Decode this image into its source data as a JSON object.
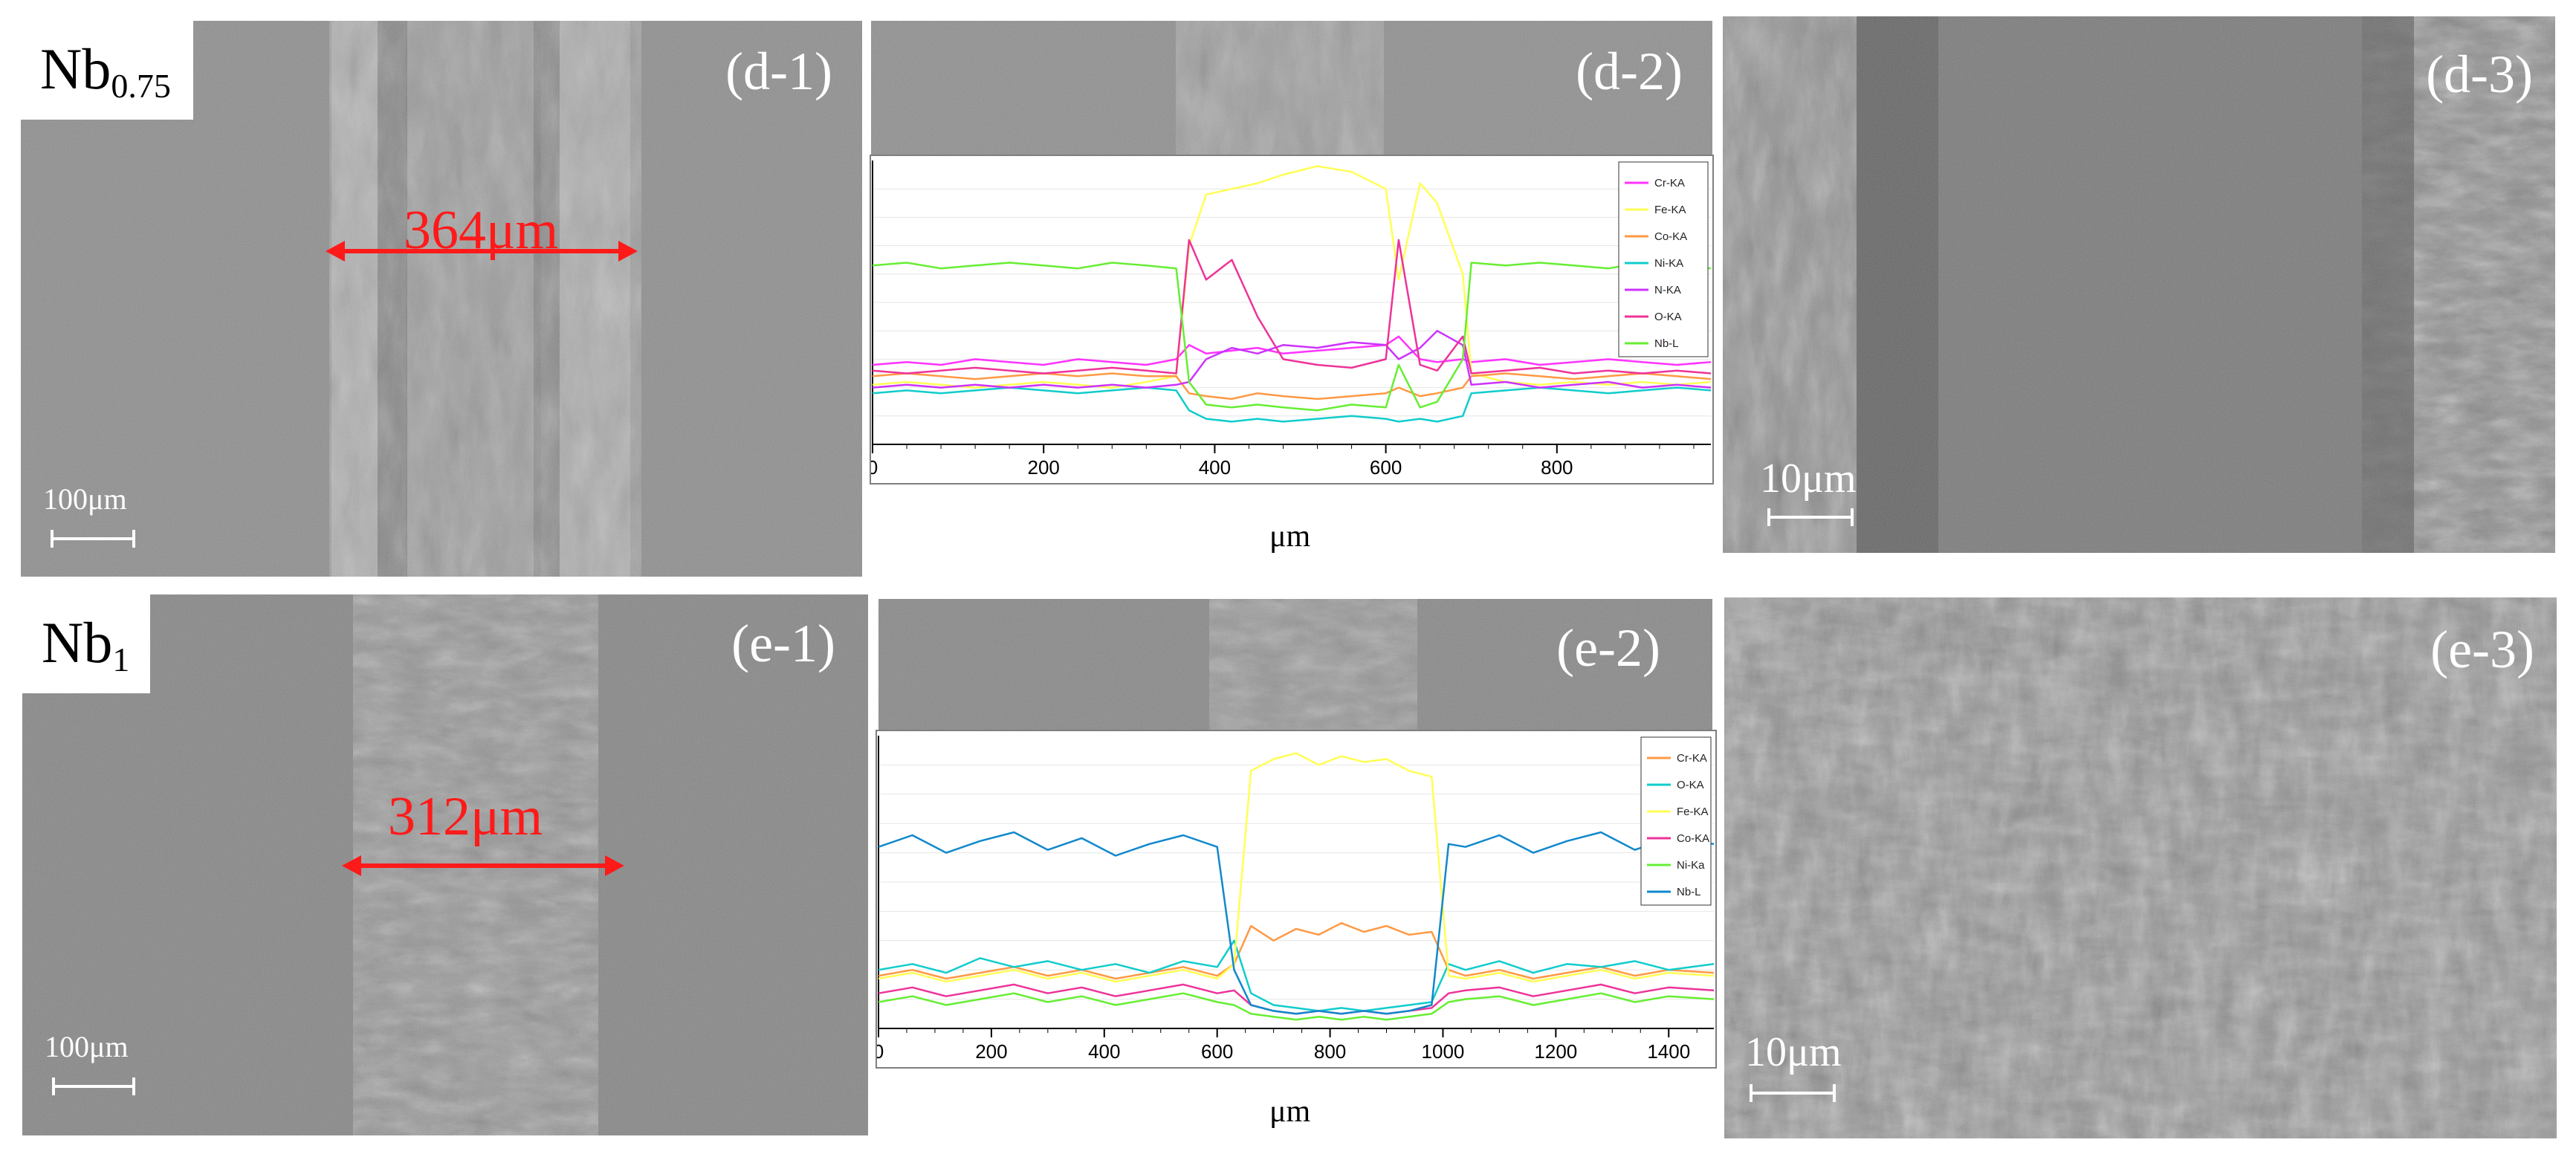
{
  "panels": {
    "d1": {
      "label": "(d-1)",
      "sample_main": "Nb",
      "sample_sub": "0.75",
      "measurement": "364μm",
      "scale": "100μm"
    },
    "d2": {
      "label": "(d-2)"
    },
    "d3": {
      "label": "(d-3)",
      "scale": "10μm"
    },
    "e1": {
      "label": "(e-1)",
      "sample_main": "Nb",
      "sample_sub": "1",
      "measurement": "312μm",
      "scale": "100μm"
    },
    "e2": {
      "label": "(e-2)"
    },
    "e3": {
      "label": "(e-3)",
      "scale": "10μm"
    }
  },
  "colors": {
    "measure": "#ff1a1a"
  },
  "chart_data": [
    {
      "type": "line",
      "id": "d2",
      "xlabel": "μm",
      "ylabel": "",
      "xlim": [
        0,
        980
      ],
      "ylim": [
        0,
        100
      ],
      "xticks": [
        "0",
        "200",
        "400",
        "600",
        "800"
      ],
      "x": [
        0,
        40,
        80,
        120,
        160,
        200,
        240,
        280,
        320,
        355,
        370,
        390,
        420,
        450,
        480,
        520,
        560,
        600,
        615,
        640,
        660,
        690,
        700,
        740,
        780,
        820,
        860,
        900,
        940,
        980
      ],
      "series": [
        {
          "name": "Cr-KA",
          "color": "#ff33ff",
          "values": [
            28,
            29,
            28,
            30,
            29,
            28,
            30,
            29,
            28,
            30,
            35,
            32,
            33,
            34,
            32,
            33,
            34,
            35,
            38,
            30,
            29,
            30,
            29,
            30,
            28,
            29,
            30,
            29,
            28,
            29
          ]
        },
        {
          "name": "Fe-KA",
          "color": "#ffff55",
          "values": [
            21,
            22,
            21,
            20,
            21,
            22,
            21,
            20,
            22,
            24,
            70,
            88,
            90,
            92,
            95,
            98,
            96,
            90,
            58,
            92,
            85,
            60,
            25,
            22,
            21,
            22,
            21,
            22,
            21,
            22
          ]
        },
        {
          "name": "Co-KA",
          "color": "#ff9944",
          "values": [
            24,
            25,
            24,
            23,
            24,
            25,
            24,
            25,
            24,
            24,
            18,
            17,
            16,
            18,
            17,
            16,
            17,
            18,
            20,
            17,
            18,
            20,
            24,
            25,
            24,
            23,
            24,
            25,
            24,
            23
          ]
        },
        {
          "name": "Ni-KA",
          "color": "#11cccc",
          "values": [
            18,
            19,
            18,
            19,
            20,
            19,
            18,
            19,
            20,
            19,
            12,
            9,
            8,
            9,
            8,
            9,
            10,
            9,
            8,
            9,
            8,
            10,
            18,
            19,
            20,
            19,
            18,
            19,
            20,
            19
          ]
        },
        {
          "name": "N-KA",
          "color": "#cc33ff",
          "values": [
            20,
            21,
            20,
            21,
            20,
            21,
            20,
            21,
            20,
            21,
            22,
            30,
            34,
            32,
            35,
            34,
            36,
            35,
            30,
            34,
            40,
            35,
            21,
            22,
            20,
            21,
            22,
            20,
            21,
            20
          ]
        },
        {
          "name": "O-KA",
          "color": "#ee3399",
          "values": [
            26,
            25,
            26,
            27,
            26,
            25,
            26,
            27,
            26,
            25,
            72,
            58,
            65,
            45,
            30,
            28,
            27,
            30,
            72,
            28,
            26,
            38,
            25,
            26,
            27,
            25,
            26,
            25,
            26,
            25
          ]
        },
        {
          "name": "Nb-L",
          "color": "#66ee33",
          "values": [
            63,
            64,
            62,
            63,
            64,
            63,
            62,
            64,
            63,
            62,
            22,
            14,
            13,
            14,
            13,
            12,
            14,
            13,
            28,
            13,
            15,
            30,
            64,
            63,
            64,
            63,
            62,
            64,
            63,
            62
          ]
        }
      ]
    },
    {
      "type": "line",
      "id": "e2",
      "xlabel": "μm",
      "ylabel": "",
      "xlim": [
        0,
        1480
      ],
      "ylim": [
        0,
        100
      ],
      "xticks": [
        "0",
        "200",
        "400",
        "600",
        "800",
        "1000",
        "1200",
        "1400"
      ],
      "x": [
        0,
        60,
        120,
        180,
        240,
        300,
        360,
        420,
        480,
        540,
        600,
        630,
        660,
        700,
        740,
        780,
        820,
        860,
        900,
        940,
        980,
        1010,
        1040,
        1100,
        1160,
        1220,
        1280,
        1340,
        1400,
        1480
      ],
      "series": [
        {
          "name": "Cr-KA",
          "color": "#ff9944",
          "values": [
            18,
            20,
            17,
            19,
            21,
            18,
            20,
            17,
            19,
            21,
            18,
            22,
            35,
            30,
            34,
            32,
            36,
            33,
            35,
            32,
            33,
            20,
            18,
            20,
            17,
            19,
            21,
            18,
            20,
            19
          ]
        },
        {
          "name": "O-KA",
          "color": "#11cccc",
          "values": [
            20,
            22,
            19,
            24,
            21,
            23,
            20,
            22,
            19,
            23,
            21,
            30,
            12,
            8,
            7,
            6,
            7,
            6,
            7,
            8,
            9,
            22,
            20,
            23,
            19,
            22,
            21,
            23,
            20,
            22
          ]
        },
        {
          "name": "Fe-KA",
          "color": "#ffff55",
          "values": [
            17,
            19,
            16,
            18,
            20,
            17,
            19,
            16,
            18,
            20,
            17,
            22,
            88,
            92,
            94,
            90,
            93,
            91,
            92,
            88,
            86,
            18,
            17,
            19,
            16,
            18,
            20,
            17,
            19,
            18
          ]
        },
        {
          "name": "Co-KA",
          "color": "#ee3399",
          "values": [
            12,
            14,
            11,
            13,
            15,
            12,
            14,
            11,
            13,
            15,
            12,
            13,
            8,
            6,
            5,
            6,
            5,
            6,
            5,
            6,
            7,
            12,
            13,
            14,
            11,
            13,
            15,
            12,
            14,
            13
          ]
        },
        {
          "name": "Ni-Ka",
          "color": "#66ee33",
          "values": [
            9,
            11,
            8,
            10,
            12,
            9,
            11,
            8,
            10,
            12,
            9,
            8,
            5,
            4,
            3,
            4,
            3,
            4,
            3,
            4,
            5,
            9,
            10,
            11,
            8,
            10,
            12,
            9,
            11,
            10
          ]
        },
        {
          "name": "Nb-L",
          "color": "#1188cc",
          "values": [
            62,
            66,
            60,
            64,
            67,
            61,
            65,
            59,
            63,
            66,
            62,
            20,
            8,
            6,
            5,
            6,
            5,
            6,
            5,
            6,
            8,
            63,
            62,
            66,
            60,
            64,
            67,
            61,
            65,
            63
          ]
        }
      ]
    }
  ]
}
